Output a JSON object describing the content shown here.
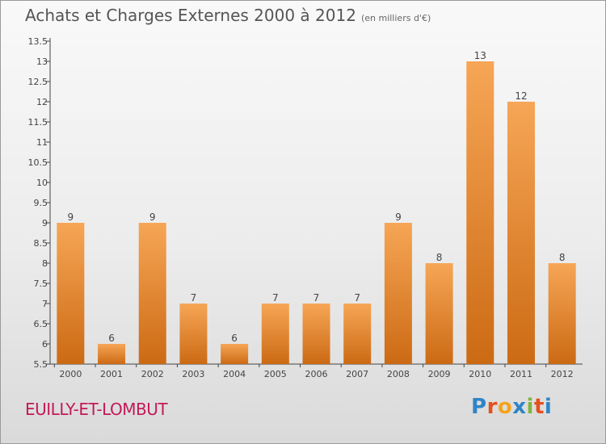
{
  "header": {
    "title": "Achats et Charges Externes 2000 à 2012",
    "subtitle": "(en milliers d'€)"
  },
  "footer": {
    "commune": "EUILLY-ET-LOMBUT",
    "brand": "Proxiti"
  },
  "colors": {
    "bar_top": "#f6a656",
    "bar_bottom": "#cc6a14",
    "commune": "#c21a58"
  },
  "chart_data": {
    "type": "bar",
    "categories": [
      "2000",
      "2001",
      "2002",
      "2003",
      "2004",
      "2005",
      "2006",
      "2007",
      "2008",
      "2009",
      "2010",
      "2011",
      "2012"
    ],
    "values": [
      9,
      6,
      9,
      7,
      6,
      7,
      7,
      7,
      9,
      8,
      13,
      12,
      8
    ],
    "ylim": [
      5.5,
      13.5
    ],
    "yticks": [
      "5.5",
      "6",
      "6.5",
      "7",
      "7.5",
      "8",
      "8.5",
      "9",
      "9.5",
      "10",
      "10.5",
      "11",
      "11.5",
      "12",
      "12.5",
      "13",
      "13.5"
    ],
    "grid": false,
    "legend": "none"
  }
}
